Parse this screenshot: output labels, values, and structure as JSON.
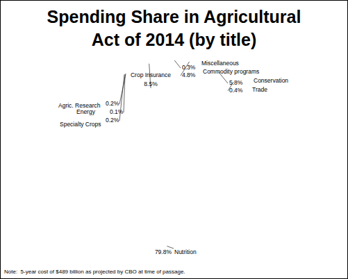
{
  "chart_data": {
    "type": "pie",
    "title": "Spending Share in Agricultural Act of 2014 (by title)",
    "note": "Note:  5-year cost of $489 billion as projected by CBO at time of passage.",
    "categories": [
      "Miscellaneous",
      "Commodity programs",
      "Conservation",
      "Trade",
      "Nutrition",
      "Specialty Crops",
      "Energy",
      "Agric. Research",
      "Crop Insurance"
    ],
    "values": [
      0.3,
      4.8,
      5.8,
      0.4,
      79.8,
      0.2,
      0.1,
      0.2,
      8.5
    ],
    "value_labels": [
      "0.3%",
      "4.8%",
      "5.8%",
      "0.4%",
      "79.8%",
      "0.2%",
      "0.1%",
      "0.2%",
      "8.5%"
    ],
    "colors": [
      "#000080",
      "#0000ff",
      "#ffff00",
      "#008080",
      "#33ffff",
      "#00ccff",
      "#ccffff",
      "#3366ff",
      "#800060"
    ],
    "data_labels": true
  }
}
